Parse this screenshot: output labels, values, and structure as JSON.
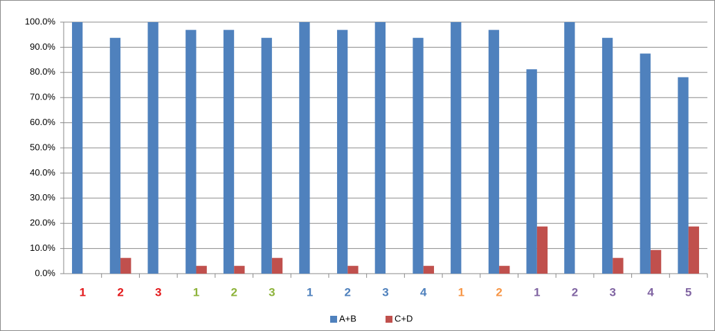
{
  "chart_data": {
    "type": "bar",
    "categories": [
      "1",
      "2",
      "3",
      "1",
      "2",
      "3",
      "1",
      "2",
      "3",
      "4",
      "1",
      "2",
      "1",
      "2",
      "3",
      "4",
      "5"
    ],
    "category_colors": [
      "#e31a1c",
      "#e31a1c",
      "#e31a1c",
      "#8db33a",
      "#8db33a",
      "#8db33a",
      "#4f81bd",
      "#4f81bd",
      "#4f81bd",
      "#4f81bd",
      "#f79646",
      "#f79646",
      "#8064a2",
      "#8064a2",
      "#8064a2",
      "#8064a2",
      "#8064a2"
    ],
    "series": [
      {
        "name": "A+B",
        "color": "#4f81bd",
        "values": [
          100,
          93.75,
          100,
          96.9,
          96.9,
          93.75,
          100,
          96.9,
          100,
          93.75,
          100,
          96.9,
          81.25,
          100,
          93.75,
          87.5,
          78.1
        ]
      },
      {
        "name": "C+D",
        "color": "#c0504d",
        "values": [
          0,
          6.25,
          0,
          3.1,
          3.1,
          6.25,
          0,
          3.1,
          0,
          3.1,
          0,
          3.1,
          18.75,
          0,
          6.25,
          9.4,
          18.75
        ]
      }
    ],
    "ylim": [
      0,
      100
    ],
    "yticks": [
      {
        "value": 0,
        "label": "0.0%"
      },
      {
        "value": 10,
        "label": "10.0%"
      },
      {
        "value": 20,
        "label": "20.0%"
      },
      {
        "value": 30,
        "label": "30.0%"
      },
      {
        "value": 40,
        "label": "40.0%"
      },
      {
        "value": 50,
        "label": "50.0%"
      },
      {
        "value": 60,
        "label": "60.0%"
      },
      {
        "value": 70,
        "label": "70.0%"
      },
      {
        "value": 80,
        "label": "80.0%"
      },
      {
        "value": 90,
        "label": "90.0%"
      },
      {
        "value": 100,
        "label": "100.0%"
      }
    ],
    "grid": true,
    "legend": "bottom"
  }
}
